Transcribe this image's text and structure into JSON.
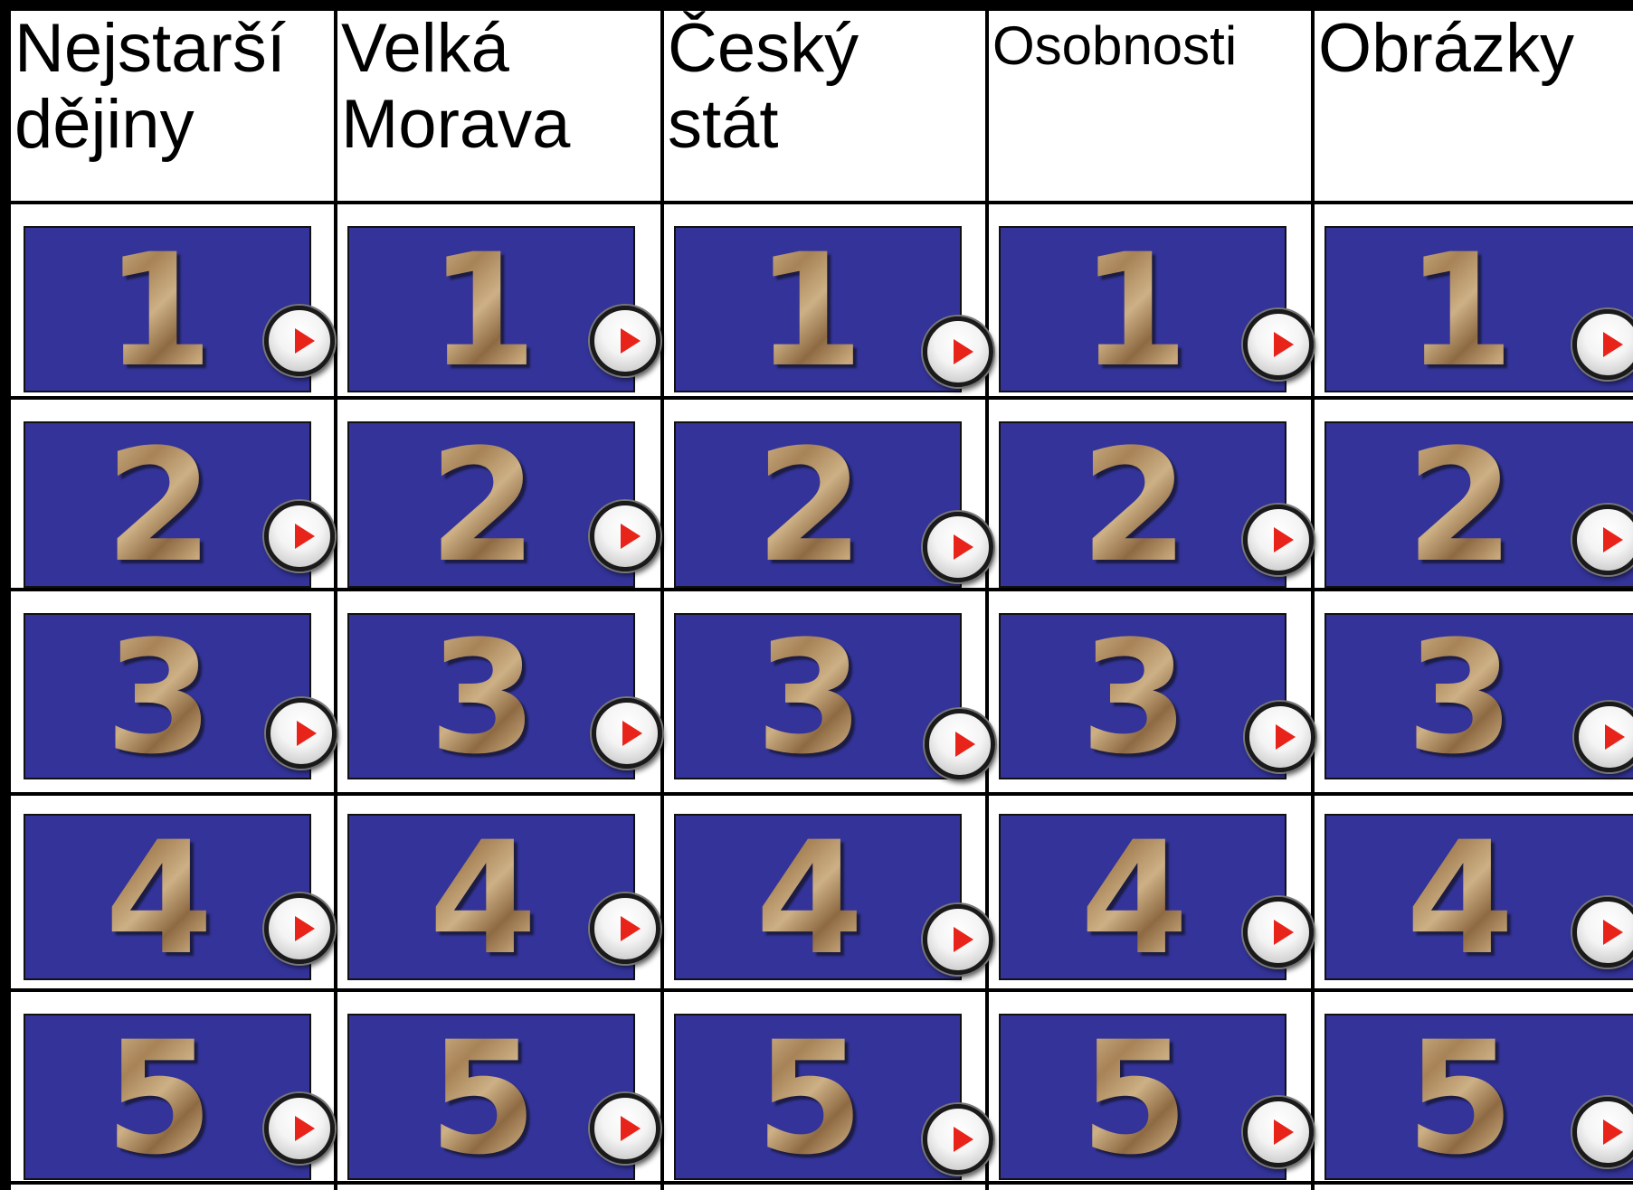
{
  "categories": [
    {
      "title": "Nejstarší dějiny"
    },
    {
      "title": "Velká Morava"
    },
    {
      "title": "Český stát"
    },
    {
      "title": "Osobnosti"
    },
    {
      "title": "Obrázky"
    }
  ],
  "tile_numbers": [
    "1",
    "2",
    "3",
    "4",
    "5"
  ],
  "icons": {
    "play_button": "play-icon"
  },
  "colors": {
    "tile_background": "#333399",
    "grid_lines": "#000000",
    "play_arrow": "#e8231a"
  }
}
